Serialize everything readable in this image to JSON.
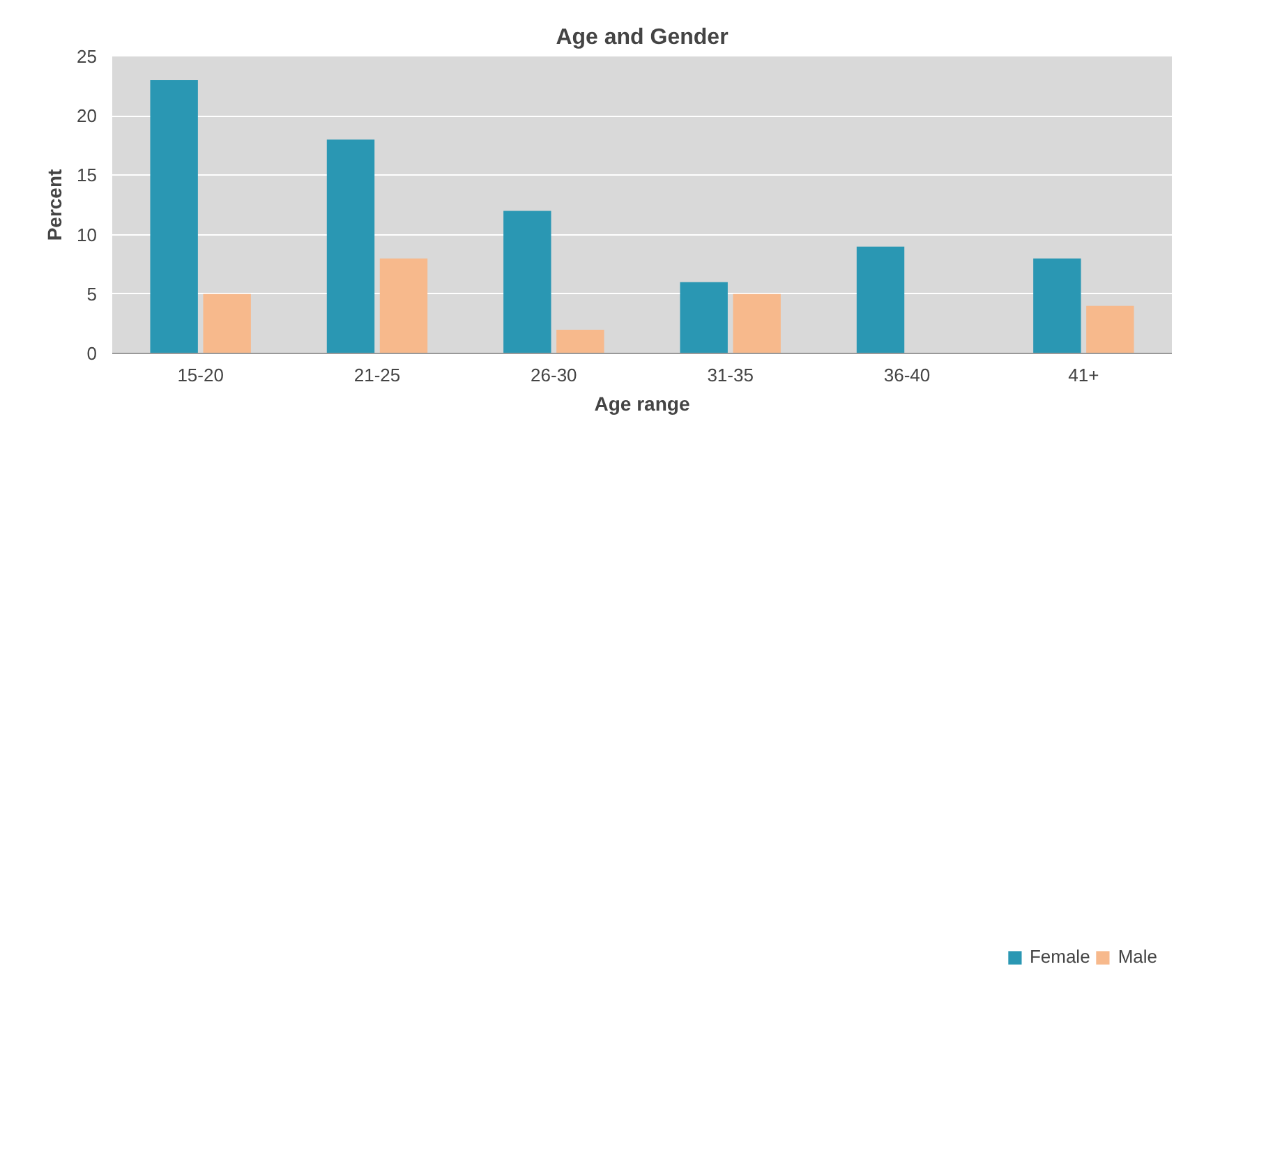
{
  "chart_data": {
    "type": "bar",
    "title": "Age and Gender",
    "xlabel": "Age range",
    "ylabel": "Percent",
    "categories": [
      "15-20",
      "21-25",
      "26-30",
      "31-35",
      "36-40",
      "41+"
    ],
    "series": [
      {
        "name": "Female",
        "color": "#2a97b3",
        "values": [
          23,
          18,
          12,
          6,
          9,
          8
        ]
      },
      {
        "name": "Male",
        "color": "#f7b98c",
        "values": [
          5,
          8,
          2,
          5,
          0,
          4
        ]
      }
    ],
    "ylim": [
      0,
      25
    ],
    "yticks": [
      0,
      5,
      10,
      15,
      20,
      25
    ],
    "grid": "y",
    "legend": "bottom right"
  }
}
